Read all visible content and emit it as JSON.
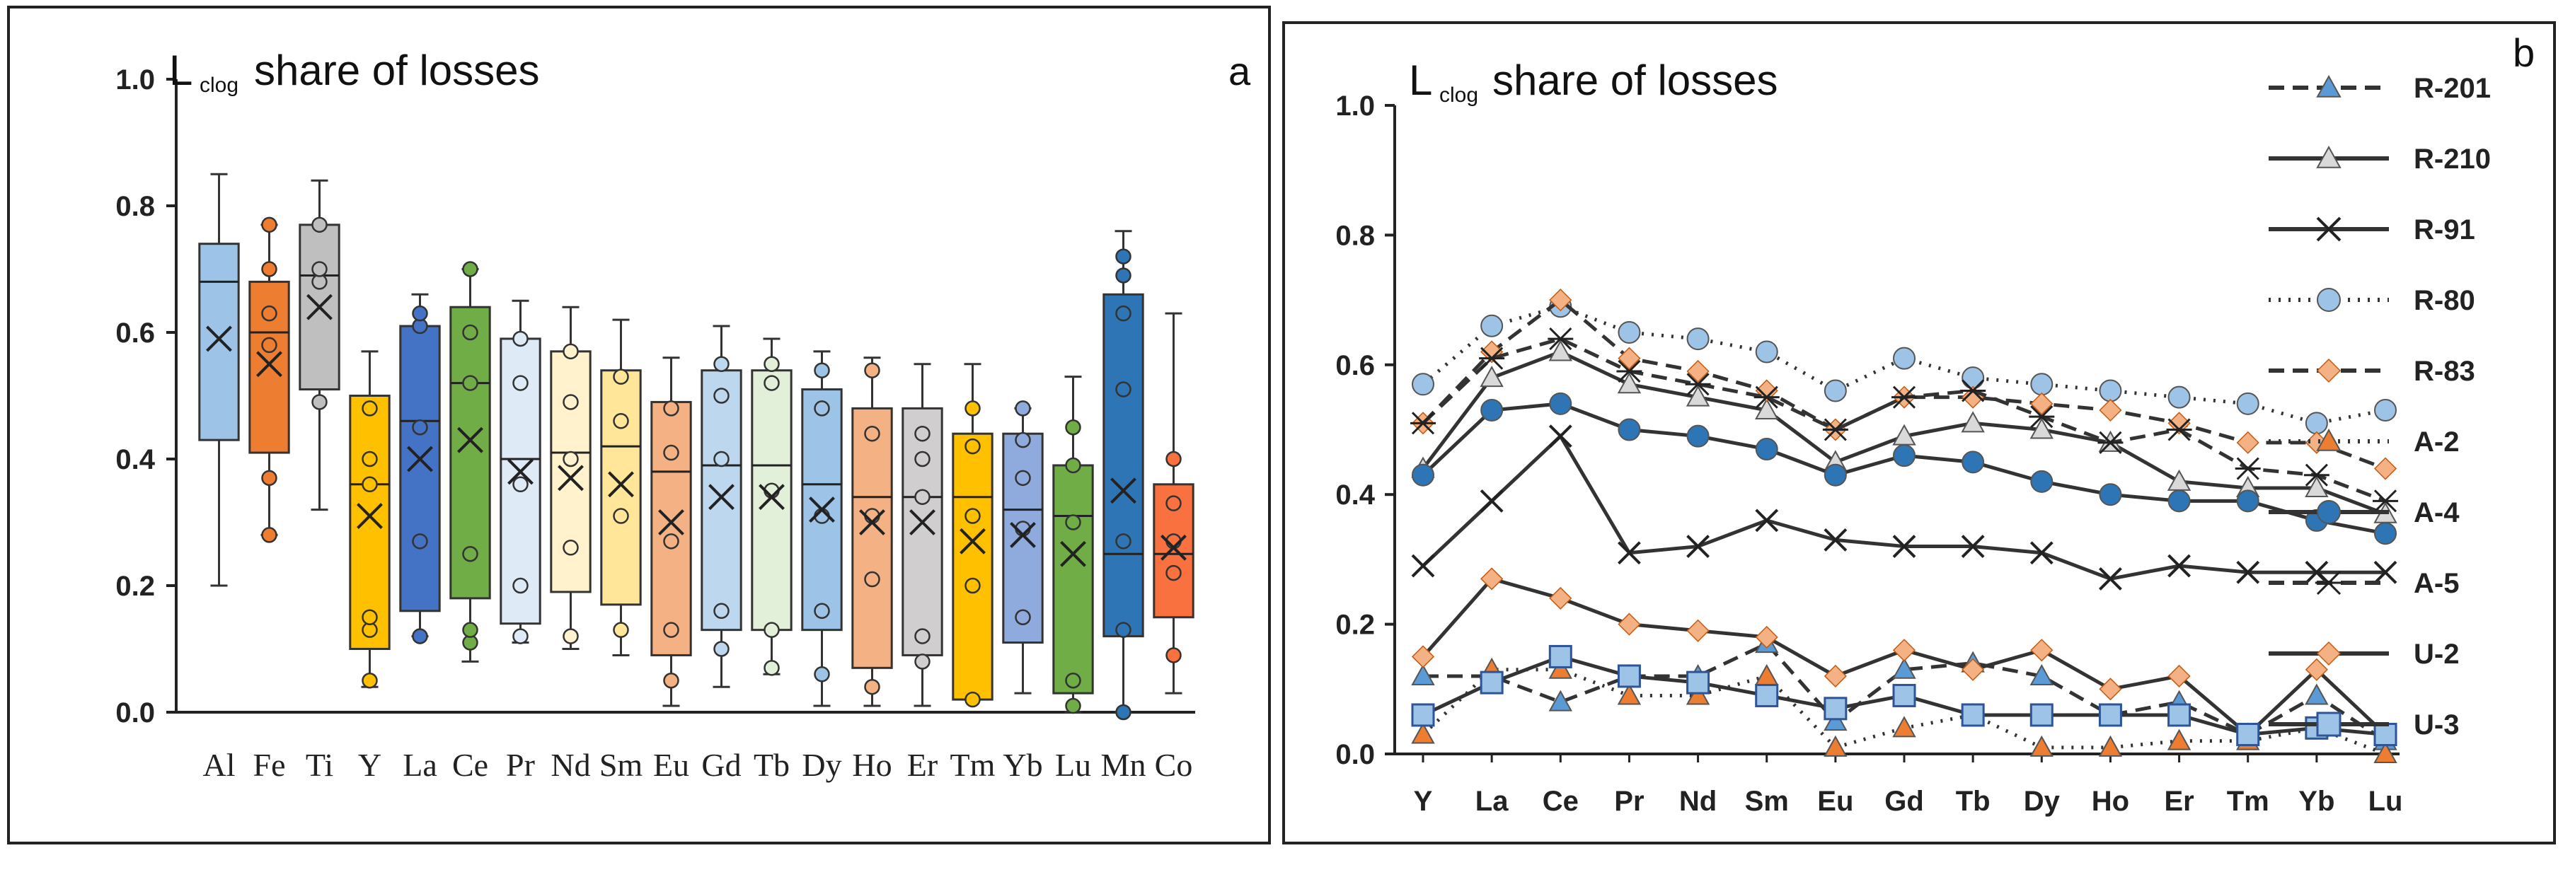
{
  "chart_data": [
    {
      "type": "box",
      "panel_label": "a",
      "title_main": "L",
      "title_subscript": "clog",
      "title_rest": "share of losses",
      "ylim": [
        0,
        1.0
      ],
      "yticks": [
        "0.0",
        "0.2",
        "0.4",
        "0.6",
        "0.8",
        "1.0"
      ],
      "categories": [
        "Al",
        "Fe",
        "Ti",
        "Y",
        "La",
        "Ce",
        "Pr",
        "Nd",
        "Sm",
        "Eu",
        "Gd",
        "Tb",
        "Dy",
        "Ho",
        "Er",
        "Tm",
        "Yb",
        "Lu",
        "Mn",
        "Co"
      ],
      "colors": [
        "#9dc3e6",
        "#ed7d31",
        "#bfbfbf",
        "#ffc000",
        "#4472c4",
        "#70ad47",
        "#deebf7",
        "#fff2cc",
        "#ffe699",
        "#f4b183",
        "#bdd7ee",
        "#e2f0d9",
        "#9dc3e6",
        "#f4b183",
        "#d0cece",
        "#ffc000",
        "#8faadc",
        "#70ad47",
        "#2e75b6",
        "#f8713e"
      ],
      "boxes": [
        {
          "min": 0.2,
          "q1": 0.43,
          "median": 0.68,
          "q3": 0.74,
          "max": 0.85,
          "mean": 0.59,
          "points": []
        },
        {
          "min": 0.28,
          "q1": 0.41,
          "median": 0.6,
          "q3": 0.68,
          "max": 0.77,
          "mean": 0.55,
          "points": [
            0.28,
            0.37,
            0.58,
            0.63,
            0.7,
            0.77
          ]
        },
        {
          "min": 0.32,
          "q1": 0.51,
          "median": 0.69,
          "q3": 0.77,
          "max": 0.84,
          "mean": 0.64,
          "points": [
            0.49,
            0.68,
            0.7,
            0.77
          ]
        },
        {
          "min": 0.04,
          "q1": 0.1,
          "median": 0.36,
          "q3": 0.5,
          "max": 0.57,
          "mean": 0.31,
          "points": [
            0.05,
            0.13,
            0.15,
            0.36,
            0.4,
            0.48
          ]
        },
        {
          "min": 0.12,
          "q1": 0.16,
          "median": 0.46,
          "q3": 0.61,
          "max": 0.66,
          "mean": 0.4,
          "points": [
            0.12,
            0.27,
            0.45,
            0.61,
            0.63
          ]
        },
        {
          "min": 0.08,
          "q1": 0.18,
          "median": 0.52,
          "q3": 0.64,
          "max": 0.7,
          "mean": 0.43,
          "points": [
            0.11,
            0.13,
            0.25,
            0.52,
            0.6,
            0.7
          ]
        },
        {
          "min": 0.11,
          "q1": 0.14,
          "median": 0.4,
          "q3": 0.59,
          "max": 0.65,
          "mean": 0.38,
          "points": [
            0.12,
            0.2,
            0.36,
            0.52,
            0.59
          ]
        },
        {
          "min": 0.1,
          "q1": 0.19,
          "median": 0.41,
          "q3": 0.57,
          "max": 0.64,
          "mean": 0.37,
          "points": [
            0.12,
            0.26,
            0.4,
            0.49,
            0.57
          ]
        },
        {
          "min": 0.09,
          "q1": 0.17,
          "median": 0.42,
          "q3": 0.54,
          "max": 0.62,
          "mean": 0.36,
          "points": [
            0.13,
            0.31,
            0.46,
            0.53
          ]
        },
        {
          "min": 0.01,
          "q1": 0.09,
          "median": 0.38,
          "q3": 0.49,
          "max": 0.56,
          "mean": 0.3,
          "points": [
            0.05,
            0.13,
            0.27,
            0.41,
            0.48
          ]
        },
        {
          "min": 0.04,
          "q1": 0.13,
          "median": 0.39,
          "q3": 0.54,
          "max": 0.61,
          "mean": 0.34,
          "points": [
            0.1,
            0.16,
            0.4,
            0.5,
            0.55
          ]
        },
        {
          "min": 0.06,
          "q1": 0.13,
          "median": 0.39,
          "q3": 0.54,
          "max": 0.59,
          "mean": 0.34,
          "points": [
            0.07,
            0.13,
            0.35,
            0.52,
            0.55
          ]
        },
        {
          "min": 0.01,
          "q1": 0.13,
          "median": 0.36,
          "q3": 0.51,
          "max": 0.57,
          "mean": 0.32,
          "points": [
            0.06,
            0.16,
            0.31,
            0.48,
            0.54
          ]
        },
        {
          "min": 0.01,
          "q1": 0.07,
          "median": 0.34,
          "q3": 0.48,
          "max": 0.56,
          "mean": 0.3,
          "points": [
            0.04,
            0.21,
            0.31,
            0.44,
            0.54
          ]
        },
        {
          "min": 0.01,
          "q1": 0.09,
          "median": 0.34,
          "q3": 0.48,
          "max": 0.55,
          "mean": 0.3,
          "points": [
            0.08,
            0.12,
            0.34,
            0.4,
            0.44
          ]
        },
        {
          "min": 0.02,
          "q1": 0.02,
          "median": 0.34,
          "q3": 0.44,
          "max": 0.55,
          "mean": 0.27,
          "points": [
            0.02,
            0.2,
            0.31,
            0.42,
            0.48
          ]
        },
        {
          "min": 0.03,
          "q1": 0.11,
          "median": 0.32,
          "q3": 0.44,
          "max": 0.48,
          "mean": 0.28,
          "points": [
            0.15,
            0.29,
            0.37,
            0.43,
            0.48
          ]
        },
        {
          "min": 0.0,
          "q1": 0.03,
          "median": 0.31,
          "q3": 0.39,
          "max": 0.53,
          "mean": 0.25,
          "points": [
            0.01,
            0.05,
            0.3,
            0.39,
            0.45
          ]
        },
        {
          "min": 0.0,
          "q1": 0.12,
          "median": 0.25,
          "q3": 0.66,
          "max": 0.76,
          "mean": 0.35,
          "points": [
            0.0,
            0.13,
            0.27,
            0.51,
            0.63,
            0.69,
            0.72
          ]
        },
        {
          "min": 0.03,
          "q1": 0.15,
          "median": 0.25,
          "q3": 0.36,
          "max": 0.63,
          "mean": 0.26,
          "points": [
            0.09,
            0.22,
            0.27,
            0.33,
            0.4
          ]
        }
      ]
    },
    {
      "type": "line",
      "panel_label": "b",
      "title_main": "L",
      "title_subscript": "clog",
      "title_rest": "share of losses",
      "ylim": [
        0,
        1.0
      ],
      "yticks": [
        "0.0",
        "0.2",
        "0.4",
        "0.6",
        "0.8",
        "1.0"
      ],
      "categories": [
        "Y",
        "La",
        "Ce",
        "Pr",
        "Nd",
        "Sm",
        "Eu",
        "Gd",
        "Tb",
        "Dy",
        "Ho",
        "Er",
        "Tm",
        "Yb",
        "Lu"
      ],
      "series": [
        {
          "name": "R-201",
          "style": "dash",
          "marker": "triangle",
          "color": "#5b9bd5",
          "values": [
            0.12,
            0.12,
            0.08,
            0.12,
            0.12,
            0.17,
            0.05,
            0.13,
            0.14,
            0.12,
            0.06,
            0.08,
            0.03,
            0.09,
            0.02
          ]
        },
        {
          "name": "R-210",
          "style": "solid",
          "marker": "triangle",
          "color": "#d9d9d9",
          "values": [
            0.44,
            0.58,
            0.62,
            0.57,
            0.55,
            0.53,
            0.45,
            0.49,
            0.51,
            0.5,
            0.48,
            0.42,
            0.41,
            0.41,
            0.37
          ]
        },
        {
          "name": "R-91",
          "style": "solid",
          "marker": "x",
          "color": "#222222",
          "values": [
            0.29,
            0.39,
            0.49,
            0.31,
            0.32,
            0.36,
            0.33,
            0.32,
            0.32,
            0.31,
            0.27,
            0.29,
            0.28,
            0.28,
            0.28
          ]
        },
        {
          "name": "R-80",
          "style": "dot",
          "marker": "circle",
          "color": "#9dc3e6",
          "values": [
            0.57,
            0.66,
            0.69,
            0.65,
            0.64,
            0.62,
            0.56,
            0.61,
            0.58,
            0.57,
            0.56,
            0.55,
            0.54,
            0.51,
            0.53
          ]
        },
        {
          "name": "R-83",
          "style": "dash",
          "marker": "diamond",
          "color": "#f4b183",
          "values": [
            0.51,
            0.62,
            0.7,
            0.61,
            0.59,
            0.56,
            0.5,
            0.55,
            0.55,
            0.54,
            0.53,
            0.51,
            0.48,
            0.48,
            0.44
          ]
        },
        {
          "name": "A-2",
          "style": "dot",
          "marker": "triangle",
          "color": "#ed7d31",
          "values": [
            0.03,
            0.13,
            0.13,
            0.09,
            0.09,
            0.12,
            0.01,
            0.04,
            0.06,
            0.01,
            0.01,
            0.02,
            0.02,
            0.04,
            0.0
          ]
        },
        {
          "name": "A-4",
          "style": "solid",
          "marker": "circle",
          "color": "#2e75b6",
          "values": [
            0.43,
            0.53,
            0.54,
            0.5,
            0.49,
            0.47,
            0.43,
            0.46,
            0.45,
            0.42,
            0.4,
            0.39,
            0.39,
            0.36,
            0.34
          ]
        },
        {
          "name": "A-5",
          "style": "dash",
          "marker": "star",
          "color": "#222222",
          "values": [
            0.51,
            0.61,
            0.64,
            0.59,
            0.57,
            0.55,
            0.5,
            0.55,
            0.56,
            0.52,
            0.48,
            0.5,
            0.44,
            0.43,
            0.39
          ]
        },
        {
          "name": "U-2",
          "style": "solid",
          "marker": "diamond",
          "color": "#f4b183",
          "values": [
            0.15,
            0.27,
            0.24,
            0.2,
            0.19,
            0.18,
            0.12,
            0.16,
            0.13,
            0.16,
            0.1,
            0.12,
            0.03,
            0.13,
            0.03
          ]
        },
        {
          "name": "U-3",
          "style": "solid",
          "marker": "square",
          "color": "#9dc3e6",
          "values": [
            0.06,
            0.11,
            0.15,
            0.12,
            0.11,
            0.09,
            0.07,
            0.09,
            0.06,
            0.06,
            0.06,
            0.06,
            0.03,
            0.04,
            0.03
          ]
        }
      ]
    }
  ]
}
